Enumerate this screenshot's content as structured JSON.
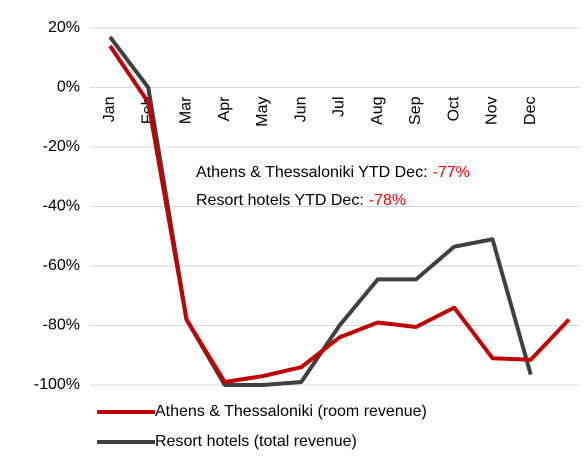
{
  "chart_data": {
    "type": "line",
    "categories": [
      "Jan",
      "Feb",
      "Mar",
      "Apr",
      "May",
      "Jun",
      "Jul",
      "Aug",
      "Sep",
      "Oct",
      "Nov",
      "Dec",
      null
    ],
    "series": [
      {
        "name": "Athens & Thessaloniki (room revenue)",
        "color": "#c00000",
        "values": [
          14,
          -5,
          -78,
          -99,
          -97,
          -94,
          -84,
          -79,
          -80.5,
          -74,
          -91,
          -91.5,
          -78
        ]
      },
      {
        "name": "Resort hotels (total revenue)",
        "color": "#404040",
        "values": [
          17,
          0,
          -78,
          -100,
          -100,
          -99,
          -80,
          -64.5,
          -64.5,
          -53.5,
          -51,
          -96.5,
          null
        ]
      }
    ],
    "ylim": [
      -100,
      20
    ],
    "yticks": [
      {
        "value": -100,
        "label": "-100%"
      },
      {
        "value": -80,
        "label": "-80%"
      },
      {
        "value": -60,
        "label": "-60%"
      },
      {
        "value": -40,
        "label": "-40%"
      },
      {
        "value": -20,
        "label": "-20%"
      },
      {
        "value": 0,
        "label": "0%"
      },
      {
        "value": 20,
        "label": "20%"
      }
    ],
    "grid": true,
    "annotations": [
      {
        "text": "Athens & Thessaloniki YTD Dec:",
        "value": "-77%",
        "color": "#ff0000"
      },
      {
        "text": "Resort hotels YTD Dec:",
        "value": "-78%",
        "color": "#ff0000"
      }
    ]
  }
}
